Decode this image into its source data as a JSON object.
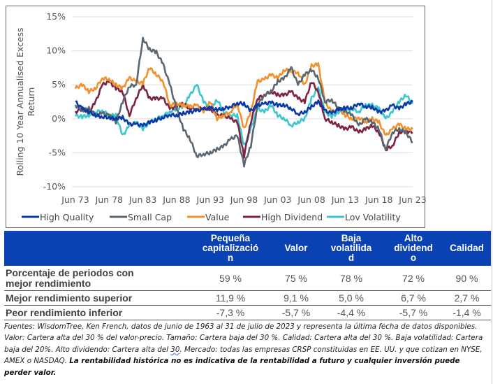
{
  "chart_data": {
    "type": "line",
    "title": "",
    "xlabel": "",
    "ylabel": "Rolling 10 Year Annualised Excess Return",
    "ylabel_lines": [
      "Rolling 10 Year Annualised Excess",
      "Return"
    ],
    "ylim": [
      -10,
      15
    ],
    "yticks": [
      15,
      10,
      5,
      0,
      -5,
      -10
    ],
    "ytick_labels": [
      "15%",
      "10%",
      "5%",
      "0%",
      "-5%",
      "-10%"
    ],
    "xlim": [
      1973,
      2023
    ],
    "xticks": [
      1973,
      1978,
      1983,
      1988,
      1993,
      1998,
      2003,
      2008,
      2013,
      2018,
      2023
    ],
    "xtick_labels": [
      "Jun 73",
      "Jun 78",
      "Jun 83",
      "Jun 88",
      "Jun 93",
      "Jun 98",
      "Jun 03",
      "Jun 08",
      "Jun 13",
      "Jun 18",
      "Jun 23"
    ],
    "grid": "horizontal",
    "legend_position": "bottom",
    "x": [
      1973,
      1974,
      1975,
      1976,
      1977,
      1978,
      1979,
      1980,
      1981,
      1982,
      1983,
      1984,
      1985,
      1986,
      1987,
      1988,
      1989,
      1990,
      1991,
      1992,
      1993,
      1994,
      1995,
      1996,
      1997,
      1998,
      1999,
      2000,
      2001,
      2002,
      2003,
      2004,
      2005,
      2006,
      2007,
      2008,
      2009,
      2010,
      2011,
      2012,
      2013,
      2014,
      2015,
      2016,
      2017,
      2018,
      2019,
      2020,
      2021,
      2022,
      2023
    ],
    "series": [
      {
        "name": "High Quality",
        "color": "#0b3aa8",
        "values": [
          2.5,
          1.5,
          1.0,
          0.5,
          0.3,
          0.2,
          0.0,
          0.2,
          -0.8,
          -0.8,
          -1.0,
          -0.5,
          -0.2,
          0.2,
          0.6,
          0.5,
          0.8,
          1.0,
          1.2,
          1.4,
          1.6,
          1.3,
          1.5,
          1.8,
          2.3,
          2.2,
          1.2,
          2.0,
          2.2,
          2.4,
          2.0,
          2.0,
          1.5,
          0.7,
          1.0,
          1.8,
          2.5,
          1.2,
          0.8,
          1.4,
          1.6,
          1.6,
          2.3,
          1.8,
          1.7,
          1.0,
          1.2,
          2.0,
          1.5,
          2.2,
          2.5
        ]
      },
      {
        "name": "Small Cap",
        "color": "#5a6670",
        "values": [
          2.0,
          1.2,
          1.5,
          0.5,
          0.8,
          0.5,
          -0.5,
          2.5,
          4.8,
          5.0,
          11.8,
          10.2,
          9.8,
          8.0,
          5.0,
          1.5,
          -1.5,
          -3.0,
          -5.5,
          -5.2,
          -5.0,
          -4.5,
          -4.0,
          -3.0,
          -2.5,
          -6.8,
          -4.0,
          2.0,
          3.5,
          4.0,
          5.5,
          6.0,
          7.5,
          5.0,
          6.5,
          7.2,
          6.0,
          2.5,
          2.8,
          1.5,
          1.2,
          0.5,
          -1.0,
          0.0,
          -0.5,
          -1.5,
          -4.5,
          -2.0,
          -1.5,
          -2.0,
          -3.5
        ]
      },
      {
        "name": "Value",
        "color": "#f0922d",
        "values": [
          4.5,
          5.0,
          4.0,
          4.5,
          6.0,
          5.8,
          5.0,
          4.5,
          6.0,
          5.5,
          5.2,
          7.5,
          6.5,
          5.5,
          2.0,
          2.2,
          2.0,
          1.8,
          2.0,
          1.0,
          2.5,
          0.0,
          0.5,
          1.0,
          2.2,
          -1.5,
          1.0,
          5.5,
          5.8,
          6.5,
          6.0,
          7.2,
          7.0,
          6.8,
          5.0,
          7.8,
          8.0,
          2.5,
          1.0,
          1.5,
          0.5,
          0.0,
          0.2,
          -0.5,
          0.0,
          -0.5,
          -2.5,
          -1.5,
          -0.8,
          -1.5,
          -1.5
        ]
      },
      {
        "name": "High Dividend",
        "color": "#7d2442",
        "values": [
          1.0,
          1.5,
          1.0,
          2.5,
          5.0,
          5.5,
          4.5,
          4.0,
          0.5,
          3.0,
          5.0,
          3.0,
          3.0,
          3.0,
          1.5,
          1.8,
          2.2,
          1.5,
          1.5,
          1.5,
          1.5,
          0.5,
          0.5,
          0.0,
          -0.5,
          -5.5,
          -0.5,
          3.0,
          3.5,
          4.0,
          3.5,
          3.5,
          4.0,
          3.0,
          2.5,
          5.5,
          4.0,
          0.0,
          -0.5,
          -1.0,
          -1.5,
          -1.2,
          -2.0,
          -1.5,
          -1.0,
          -2.0,
          -4.5,
          -4.0,
          -2.0,
          -1.8,
          -2.0
        ]
      },
      {
        "name": "Lov Volatility",
        "color": "#3ec6cf",
        "values": [
          0.5,
          0.3,
          0.5,
          1.0,
          1.2,
          0.5,
          0.5,
          -2.5,
          -1.0,
          -0.5,
          -1.5,
          -0.5,
          0.0,
          0.5,
          1.0,
          1.5,
          1.8,
          3.5,
          5.0,
          2.5,
          1.5,
          2.8,
          1.0,
          0.5,
          0.5,
          -4.0,
          -1.5,
          1.5,
          1.0,
          2.0,
          0.5,
          0.0,
          -1.0,
          -0.5,
          0.0,
          3.0,
          4.5,
          1.0,
          0.3,
          1.0,
          1.2,
          1.5,
          1.0,
          2.0,
          2.0,
          1.5,
          0.0,
          1.0,
          2.5,
          3.5,
          2.2
        ]
      }
    ]
  },
  "table": {
    "headers": [
      "",
      "Pequeña capitalizació n",
      "Valor",
      "Baja volatilida d",
      "Alto dividend o",
      "Calidad"
    ],
    "header_lines": [
      [],
      [
        "Pequeña",
        "capitalizació",
        "n"
      ],
      [
        "Valor"
      ],
      [
        "Baja",
        "volatilida",
        "d"
      ],
      [
        "Alto",
        "dividend",
        "o"
      ],
      [
        "Calidad"
      ]
    ],
    "rows": [
      {
        "label_lines": [
          "Porcentaje de periodos con",
          "mejor rendimiento"
        ],
        "values": [
          "59 %",
          "75 %",
          "78 %",
          "72 %",
          "90 %"
        ]
      },
      {
        "label_lines": [
          "Mejor rendimiento superior"
        ],
        "values": [
          "11,9 %",
          "9,1 %",
          "5,0 %",
          "6,7 %",
          "2,7 %"
        ]
      },
      {
        "label_lines": [
          "Peor rendimiento inferior"
        ],
        "values": [
          "-7,3 %",
          "-5,7 %",
          "-4,4 %",
          "-5,7 %",
          "-1,4 %"
        ]
      }
    ]
  },
  "footnote": {
    "italic_1": "Fuentes: WisdomTree, Ken French, datos de junio de 1963 al 31 de julio de 2023 y representa la última fecha de datos disponibles. Valor: Cartera alta del 30 % del valor-precio. Tamaño: Cartera baja del 30 %. Calidad: Cartera alta del 30 %. Baja volatilidad: Cartera baja del 20%. Alto dividendo: Cartera alta del ",
    "wavy": "30",
    "italic_2": ". Mercado: todas las empresas CRSP constituidas en EE. UU. y que cotizan en NYSE, AMEX o NASDAQ. ",
    "bold": "La rentabilidad histórica no es indicativa de la rentabilidad a futuro y cualquier inversión puede perder valor."
  }
}
